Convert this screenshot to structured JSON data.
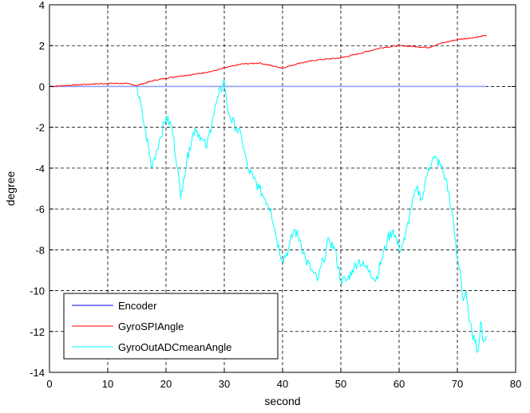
{
  "chart_data": {
    "type": "line",
    "title": "",
    "xlabel": "second",
    "ylabel": "degree",
    "xlim": [
      0,
      80
    ],
    "ylim": [
      -14,
      4
    ],
    "xticks": [
      0,
      10,
      20,
      30,
      40,
      50,
      60,
      70,
      80
    ],
    "yticks": [
      -14,
      -12,
      -10,
      -8,
      -6,
      -4,
      -2,
      0,
      2,
      4
    ],
    "grid": true,
    "grid_style": "dashed",
    "legend_position": "bottom-left",
    "series": [
      {
        "name": "Encoder",
        "color": "#0000ff",
        "x": [
          0,
          75
        ],
        "y": [
          0,
          0
        ]
      },
      {
        "name": "GyroSPIAngle",
        "color": "#ff0000",
        "x": [
          0,
          3,
          6,
          10,
          13,
          15,
          18,
          22,
          25,
          28,
          30,
          33,
          36,
          40,
          43,
          46,
          50,
          53,
          55,
          57,
          60,
          63,
          65,
          67,
          70,
          73,
          75
        ],
        "y": [
          0.0,
          0.05,
          0.1,
          0.15,
          0.15,
          0.05,
          0.3,
          0.5,
          0.6,
          0.75,
          0.9,
          1.1,
          1.15,
          0.9,
          1.15,
          1.3,
          1.4,
          1.6,
          1.75,
          1.9,
          2.0,
          1.95,
          1.9,
          2.1,
          2.3,
          2.4,
          2.5
        ]
      },
      {
        "name": "GyroOutADCmeanAngle",
        "color": "#00ffff",
        "x": [
          15,
          16,
          17,
          17.5,
          18,
          19,
          20,
          21,
          22,
          22.5,
          23,
          24,
          25,
          26,
          27,
          28,
          29,
          30,
          30.5,
          31,
          32,
          33,
          34,
          35,
          36,
          37,
          38,
          39,
          40,
          41,
          42,
          43,
          44,
          45,
          46,
          47,
          48,
          49,
          50,
          51,
          52,
          53,
          54,
          55,
          56,
          57,
          58,
          59,
          60,
          61,
          62,
          63,
          64,
          65,
          66,
          67,
          68,
          69,
          70,
          70.5,
          71,
          71.5,
          72,
          72.5,
          73,
          73.5,
          74,
          74.5,
          75
        ],
        "y": [
          0,
          -1.5,
          -3,
          -4,
          -3.5,
          -2.5,
          -1.5,
          -2,
          -4,
          -5.5,
          -4.5,
          -3,
          -2,
          -2.5,
          -3,
          -1.5,
          -0.5,
          0.3,
          -1,
          -1.5,
          -2,
          -2.5,
          -4,
          -4.5,
          -5,
          -5.5,
          -6,
          -7.5,
          -8.5,
          -8,
          -7,
          -7.5,
          -8.5,
          -9,
          -9.5,
          -8.5,
          -7.5,
          -8,
          -9.5,
          -9.5,
          -9,
          -8.5,
          -8.8,
          -9,
          -9.5,
          -8.5,
          -7.5,
          -7,
          -8,
          -7.5,
          -6,
          -5,
          -5.5,
          -4,
          -3.5,
          -3.8,
          -4.5,
          -6,
          -8.5,
          -9,
          -10.5,
          -10,
          -11.5,
          -12,
          -12.5,
          -13,
          -11.5,
          -12.5,
          -12.2
        ]
      }
    ]
  }
}
